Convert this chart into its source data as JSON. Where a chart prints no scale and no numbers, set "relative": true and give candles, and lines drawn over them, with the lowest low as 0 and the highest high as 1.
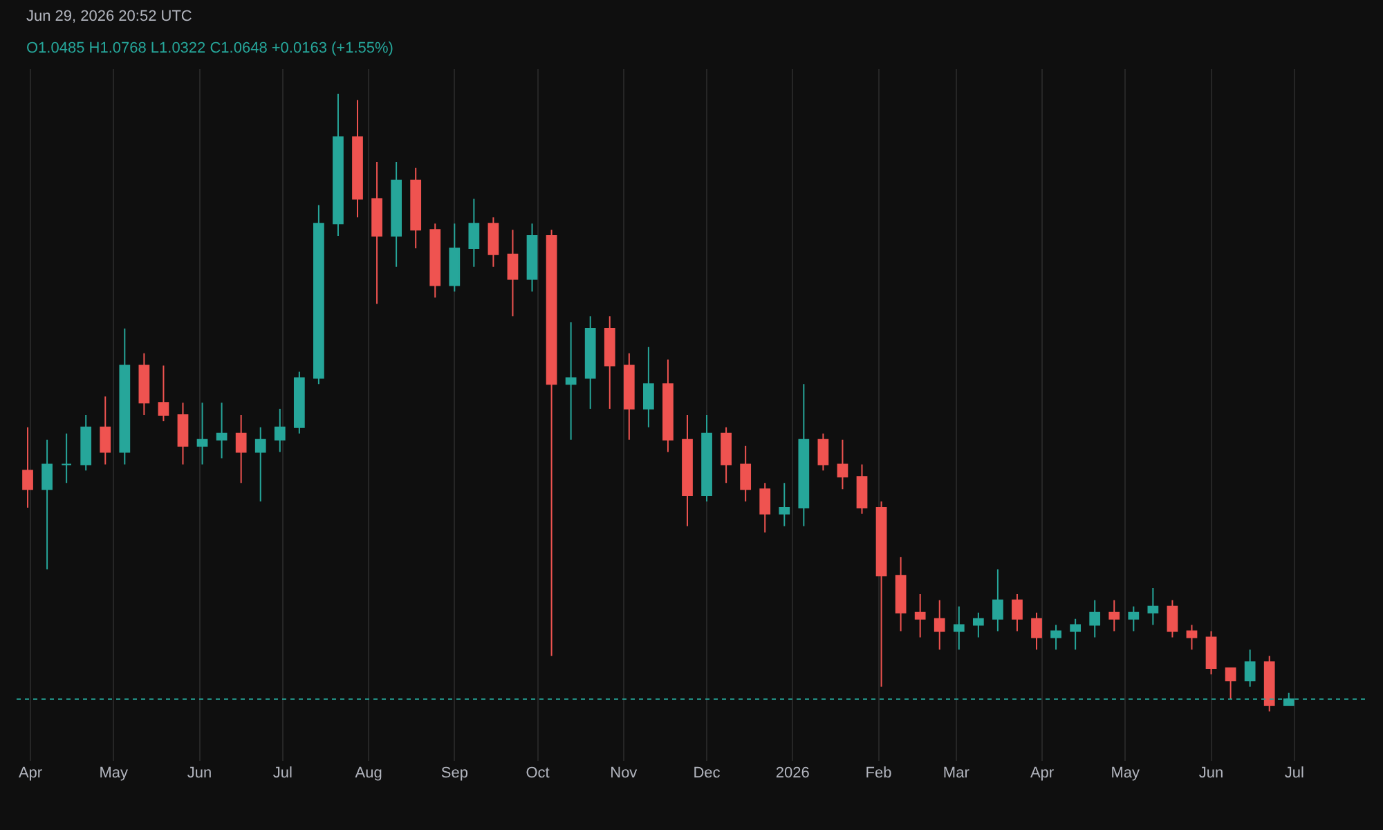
{
  "chart_data": {
    "type": "candlestick",
    "relative": true,
    "annotations": [
      "Jun 29, 2026 20:52 UTC",
      "O1.0485 H1.0768 L1.0322 C1.0648 +0.0163 (+1.55%)"
    ],
    "x": [
      "2025-03-31",
      "2025-04-07",
      "2025-04-14",
      "2025-04-21",
      "2025-04-28",
      "2025-05-05",
      "2025-05-12",
      "2025-05-19",
      "2025-05-26",
      "2025-06-02",
      "2025-06-09",
      "2025-06-16",
      "2025-06-23",
      "2025-06-30",
      "2025-07-07",
      "2025-07-14",
      "2025-07-21",
      "2025-07-28",
      "2025-08-04",
      "2025-08-11",
      "2025-08-18",
      "2025-08-25",
      "2025-09-01",
      "2025-09-08",
      "2025-09-15",
      "2025-09-22",
      "2025-09-29",
      "2025-10-06",
      "2025-10-13",
      "2025-10-20",
      "2025-10-27",
      "2025-11-03",
      "2025-11-10",
      "2025-11-17",
      "2025-11-24",
      "2025-12-01",
      "2025-12-08",
      "2025-12-15",
      "2025-12-22",
      "2025-12-29",
      "2026-01-05",
      "2026-01-12",
      "2026-01-19",
      "2026-01-26",
      "2026-02-02",
      "2026-02-09",
      "2026-02-16",
      "2026-02-23",
      "2026-03-02",
      "2026-03-09",
      "2026-03-16",
      "2026-03-23",
      "2026-03-30",
      "2026-04-06",
      "2026-04-13",
      "2026-04-20",
      "2026-04-27",
      "2026-05-04",
      "2026-05-11",
      "2026-05-18",
      "2026-05-25",
      "2026-06-01",
      "2026-06-08",
      "2026-06-15",
      "2026-06-22",
      "2026-06-29"
    ],
    "ohlc": [
      [
        0.39,
        0.46,
        0.33,
        0.36
      ],
      [
        0.36,
        0.44,
        0.23,
        0.4
      ],
      [
        0.4,
        0.45,
        0.37,
        0.4
      ],
      [
        0.4,
        0.48,
        0.39,
        0.46
      ],
      [
        0.46,
        0.51,
        0.4,
        0.42
      ],
      [
        0.42,
        0.62,
        0.4,
        0.56
      ],
      [
        0.56,
        0.58,
        0.48,
        0.5
      ],
      [
        0.5,
        0.56,
        0.47,
        0.48
      ],
      [
        0.48,
        0.5,
        0.4,
        0.43
      ],
      [
        0.43,
        0.5,
        0.4,
        0.44
      ],
      [
        0.44,
        0.5,
        0.41,
        0.45
      ],
      [
        0.45,
        0.48,
        0.37,
        0.42
      ],
      [
        0.42,
        0.46,
        0.34,
        0.44
      ],
      [
        0.44,
        0.49,
        0.42,
        0.46
      ],
      [
        0.46,
        0.55,
        0.45,
        0.54
      ],
      [
        0.54,
        0.82,
        0.53,
        0.79
      ],
      [
        0.79,
        1.0,
        0.77,
        0.93
      ],
      [
        0.93,
        0.99,
        0.8,
        0.83
      ],
      [
        0.83,
        0.89,
        0.66,
        0.77
      ],
      [
        0.77,
        0.89,
        0.72,
        0.86
      ],
      [
        0.86,
        0.88,
        0.75,
        0.78
      ],
      [
        0.78,
        0.79,
        0.67,
        0.69
      ],
      [
        0.69,
        0.79,
        0.68,
        0.75
      ],
      [
        0.75,
        0.83,
        0.72,
        0.79
      ],
      [
        0.79,
        0.8,
        0.72,
        0.74
      ],
      [
        0.74,
        0.78,
        0.64,
        0.7
      ],
      [
        0.7,
        0.79,
        0.68,
        0.77
      ],
      [
        0.77,
        0.78,
        0.09,
        0.53
      ],
      [
        0.53,
        0.63,
        0.44,
        0.54
      ],
      [
        0.54,
        0.64,
        0.49,
        0.62
      ],
      [
        0.62,
        0.64,
        0.49,
        0.56
      ],
      [
        0.56,
        0.58,
        0.44,
        0.49
      ],
      [
        0.49,
        0.59,
        0.46,
        0.53
      ],
      [
        0.53,
        0.57,
        0.42,
        0.44
      ],
      [
        0.44,
        0.48,
        0.3,
        0.35
      ],
      [
        0.35,
        0.48,
        0.34,
        0.45
      ],
      [
        0.45,
        0.46,
        0.37,
        0.4
      ],
      [
        0.4,
        0.43,
        0.34,
        0.36
      ],
      [
        0.36,
        0.37,
        0.29,
        0.32
      ],
      [
        0.32,
        0.37,
        0.3,
        0.33
      ],
      [
        0.33,
        0.53,
        0.3,
        0.44
      ],
      [
        0.44,
        0.45,
        0.39,
        0.4
      ],
      [
        0.4,
        0.44,
        0.36,
        0.38
      ],
      [
        0.38,
        0.4,
        0.32,
        0.33
      ],
      [
        0.33,
        0.34,
        0.04,
        0.22
      ],
      [
        0.22,
        0.25,
        0.13,
        0.16
      ],
      [
        0.16,
        0.19,
        0.12,
        0.15
      ],
      [
        0.15,
        0.18,
        0.1,
        0.13
      ],
      [
        0.13,
        0.17,
        0.1,
        0.14
      ],
      [
        0.14,
        0.16,
        0.12,
        0.15
      ],
      [
        0.15,
        0.23,
        0.13,
        0.18
      ],
      [
        0.18,
        0.19,
        0.13,
        0.15
      ],
      [
        0.15,
        0.16,
        0.1,
        0.12
      ],
      [
        0.12,
        0.14,
        0.1,
        0.13
      ],
      [
        0.13,
        0.15,
        0.1,
        0.14
      ],
      [
        0.14,
        0.18,
        0.12,
        0.16
      ],
      [
        0.16,
        0.18,
        0.13,
        0.15
      ],
      [
        0.15,
        0.17,
        0.13,
        0.16
      ],
      [
        0.16,
        0.2,
        0.14,
        0.17
      ],
      [
        0.17,
        0.18,
        0.12,
        0.13
      ],
      [
        0.13,
        0.14,
        0.1,
        0.12
      ],
      [
        0.12,
        0.13,
        0.06,
        0.07
      ],
      [
        0.07,
        0.07,
        0.02,
        0.05
      ],
      [
        0.05,
        0.1,
        0.04,
        0.08
      ],
      [
        0.08,
        0.09,
        0.0,
        0.01
      ],
      [
        0.01,
        0.03,
        0.01,
        0.02
      ]
    ],
    "xlim": [
      "2025-03-27",
      "2026-07-27"
    ],
    "xticks": [
      {
        "value": "2025-04-01",
        "label": "Apr"
      },
      {
        "value": "2025-05-01",
        "label": "May"
      },
      {
        "value": "2025-06-01",
        "label": "Jun"
      },
      {
        "value": "2025-07-01",
        "label": "Jul"
      },
      {
        "value": "2025-08-01",
        "label": "Aug"
      },
      {
        "value": "2025-09-01",
        "label": "Sep"
      },
      {
        "value": "2025-10-01",
        "label": "Oct"
      },
      {
        "value": "2025-11-01",
        "label": "Nov"
      },
      {
        "value": "2025-12-01",
        "label": "Dec"
      },
      {
        "value": "2026-01-01",
        "label": "2026"
      },
      {
        "value": "2026-02-01",
        "label": "Feb"
      },
      {
        "value": "2026-03-01",
        "label": "Mar"
      },
      {
        "value": "2026-04-01",
        "label": "Apr"
      },
      {
        "value": "2026-05-01",
        "label": "May"
      },
      {
        "value": "2026-06-01",
        "label": "Jun"
      },
      {
        "value": "2026-07-01",
        "label": "Jul"
      }
    ],
    "ref_lines": [
      {
        "axis": "y",
        "value": 0.02,
        "color": "#26a69a",
        "line_style": "dotted"
      }
    ],
    "grid": "x",
    "tick_labels": "x"
  }
}
